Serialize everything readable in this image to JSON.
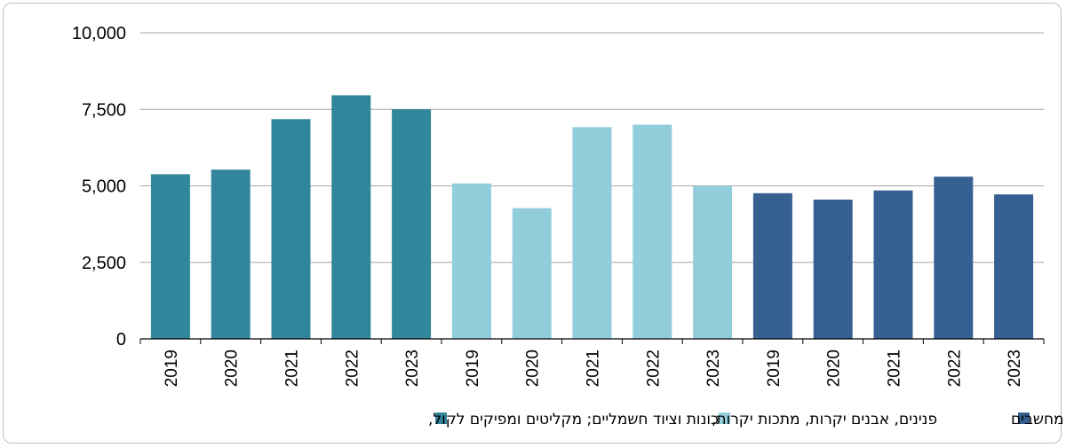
{
  "chart_data": {
    "type": "bar",
    "title": "",
    "xlabel": "",
    "ylabel": "",
    "ylim": [
      0,
      10000
    ],
    "yticks": [
      0,
      2500,
      5000,
      7500,
      10000
    ],
    "ytick_labels": [
      "0",
      "2,500",
      "5,000",
      "7,500",
      "10,000"
    ],
    "grid": true,
    "legend_position": "bottom",
    "series": [
      {
        "name": "מכונות וציוד חשמליים; מקליטים ומפיקים לקול,",
        "color": "#31869B",
        "categories": [
          "2019",
          "2020",
          "2021",
          "2022",
          "2023"
        ],
        "values": [
          5380,
          5530,
          7180,
          7960,
          7500
        ]
      },
      {
        "name": "פנינים, אבנים יקרות, מתכות יקרות,",
        "color": "#92CDDC",
        "categories": [
          "2019",
          "2020",
          "2021",
          "2022",
          "2023"
        ],
        "values": [
          5080,
          4270,
          6920,
          7000,
          5000
        ]
      },
      {
        "name": "מכונות ומכשירים מכניים וציוד מחשבים",
        "color": "#366092",
        "categories": [
          "2019",
          "2020",
          "2021",
          "2022",
          "2023"
        ],
        "values": [
          4760,
          4550,
          4850,
          5300,
          4720
        ]
      }
    ]
  }
}
